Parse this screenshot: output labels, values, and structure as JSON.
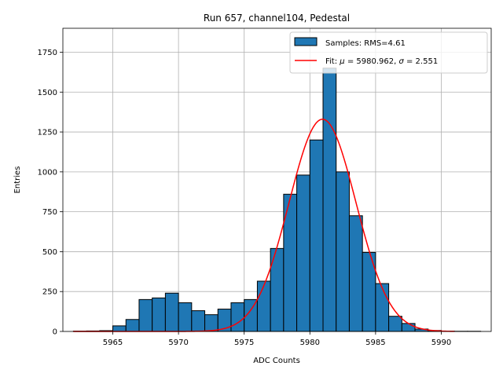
{
  "chart_data": {
    "type": "bar",
    "title": "Run 657, channel104, Pedestal",
    "xlabel": "ADC Counts",
    "ylabel": "Entries",
    "xlim": [
      5961.2,
      5993.8
    ],
    "ylim": [
      0,
      1900
    ],
    "xticks": [
      5965,
      5970,
      5975,
      5980,
      5985,
      5990
    ],
    "yticks": [
      0,
      250,
      500,
      750,
      1000,
      1250,
      1500,
      1750
    ],
    "grid": true,
    "legend_position": "top-right",
    "histogram": {
      "name": "Samples: RMS=4.61",
      "color": "#1f77b4",
      "edge_color": "#000000",
      "bin_width": 1,
      "bin_left_edges": [
        5962,
        5963,
        5964,
        5965,
        5966,
        5967,
        5968,
        5969,
        5970,
        5971,
        5972,
        5973,
        5974,
        5975,
        5976,
        5977,
        5978,
        5979,
        5980,
        5981,
        5982,
        5983,
        5984,
        5985,
        5986,
        5987,
        5988,
        5989,
        5990,
        5991,
        5992
      ],
      "values": [
        2,
        3,
        5,
        35,
        75,
        200,
        210,
        240,
        180,
        130,
        105,
        140,
        180,
        200,
        315,
        520,
        860,
        980,
        1200,
        1650,
        1000,
        725,
        495,
        300,
        95,
        50,
        15,
        6,
        2,
        1,
        1
      ]
    },
    "fit": {
      "name_prefix": "Fit: ",
      "name_mu_symbol": "μ",
      "name_mu_text": " = 5980.962, ",
      "name_sigma_symbol": "σ",
      "name_sigma_text": " = 2.551",
      "mu": 5980.962,
      "sigma": 2.551,
      "amplitude": 1330,
      "x_range": [
        5962,
        5991
      ],
      "color": "#ff0000"
    }
  }
}
